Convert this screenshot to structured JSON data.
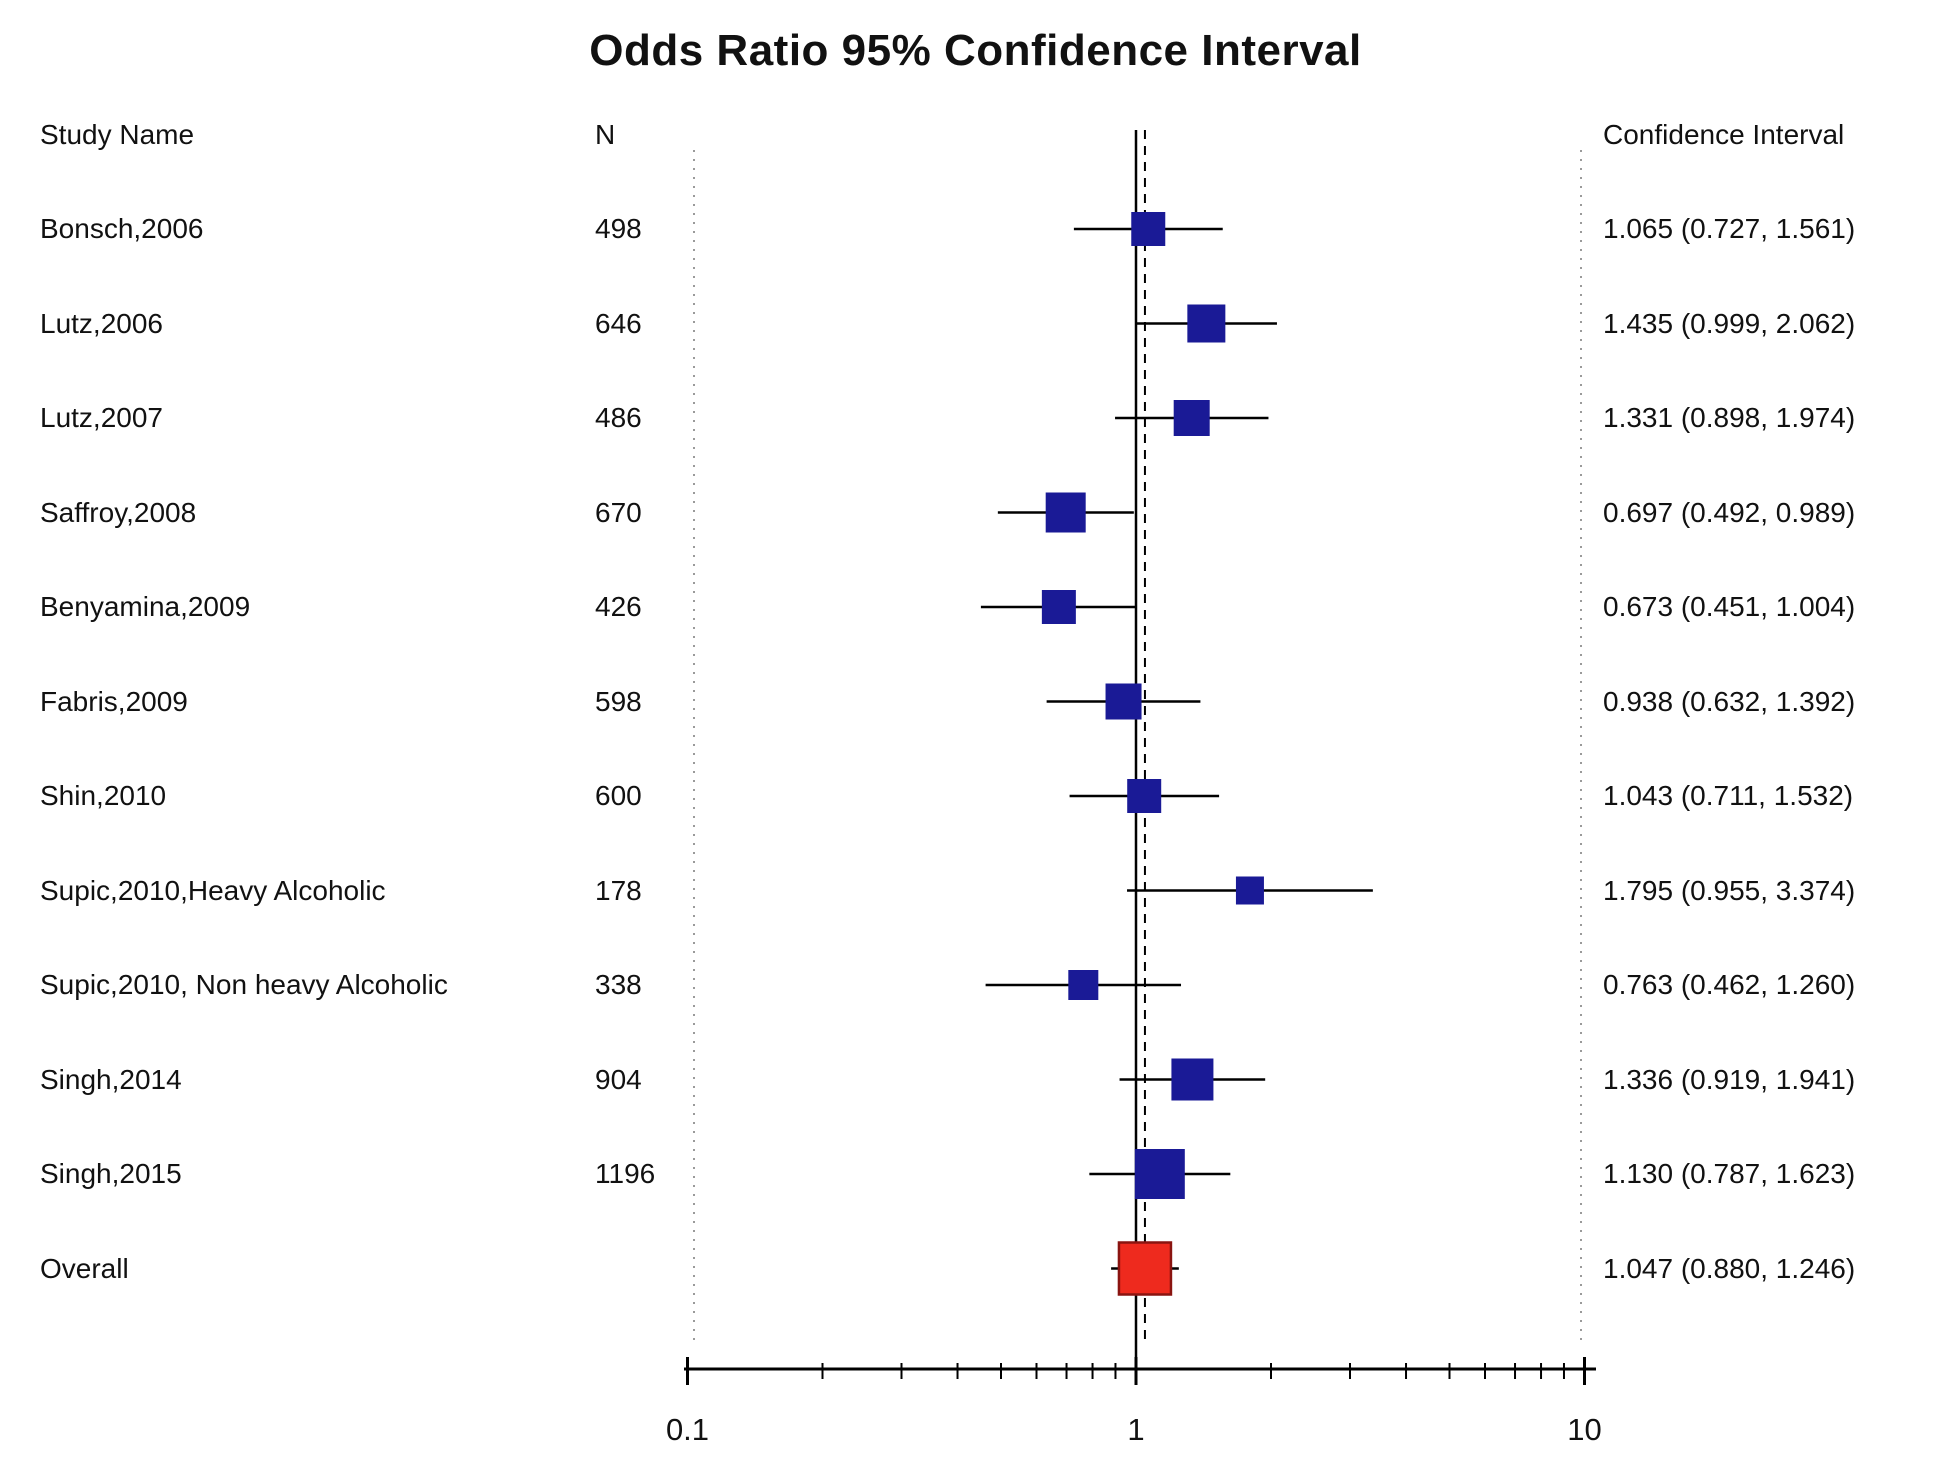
{
  "title": "Odds Ratio 95% Confidence Interval",
  "columns": {
    "study": "Study Name",
    "n": "N",
    "ci": "Confidence Interval"
  },
  "colors": {
    "marker": "#1a1a96",
    "overall_marker": "#ee2a1e",
    "overall_marker_border": "#8a1410",
    "line": "#000000",
    "guide": "#9a9a9a",
    "text": "#111111"
  },
  "chart_data": {
    "type": "forest",
    "x_scale": "log10",
    "x_range": [
      0.1,
      10
    ],
    "x_tick_labels": [
      "0.1",
      "1",
      "10"
    ],
    "x_major_ticks": [
      0.1,
      1,
      10
    ],
    "x_minor_ticks": [
      0.2,
      0.3,
      0.4,
      0.5,
      0.6,
      0.7,
      0.8,
      0.9,
      2,
      3,
      4,
      5,
      6,
      7,
      8,
      9
    ],
    "reference_line": 1,
    "overall_dashed_line": 1.047,
    "studies": [
      {
        "name": "Bonsch,2006",
        "n": "498",
        "or": 1.065,
        "ci_low": 0.727,
        "ci_high": 1.561,
        "ci_label": "1.065 (0.727, 1.561)",
        "marker_size": 34
      },
      {
        "name": "Lutz,2006",
        "n": "646",
        "or": 1.435,
        "ci_low": 0.999,
        "ci_high": 2.062,
        "ci_label": "1.435 (0.999, 2.062)",
        "marker_size": 38
      },
      {
        "name": "Lutz,2007",
        "n": "486",
        "or": 1.331,
        "ci_low": 0.898,
        "ci_high": 1.974,
        "ci_label": "1.331 (0.898, 1.974)",
        "marker_size": 36
      },
      {
        "name": "Saffroy,2008",
        "n": "670",
        "or": 0.697,
        "ci_low": 0.492,
        "ci_high": 0.989,
        "ci_label": "0.697 (0.492, 0.989)",
        "marker_size": 40
      },
      {
        "name": "Benyamina,2009",
        "n": "426",
        "or": 0.673,
        "ci_low": 0.451,
        "ci_high": 1.004,
        "ci_label": "0.673 (0.451, 1.004)",
        "marker_size": 34
      },
      {
        "name": "Fabris,2009",
        "n": "598",
        "or": 0.938,
        "ci_low": 0.632,
        "ci_high": 1.392,
        "ci_label": "0.938 (0.632, 1.392)",
        "marker_size": 36
      },
      {
        "name": "Shin,2010",
        "n": "600",
        "or": 1.043,
        "ci_low": 0.711,
        "ci_high": 1.532,
        "ci_label": "1.043 (0.711, 1.532)",
        "marker_size": 34
      },
      {
        "name": "Supic,2010,Heavy Alcoholic",
        "n": "178",
        "or": 1.795,
        "ci_low": 0.955,
        "ci_high": 3.374,
        "ci_label": "1.795 (0.955, 3.374)",
        "marker_size": 28
      },
      {
        "name": "Supic,2010, Non heavy Alcoholic",
        "n": "338",
        "or": 0.763,
        "ci_low": 0.462,
        "ci_high": 1.26,
        "ci_label": "0.763 (0.462, 1.260)",
        "marker_size": 30
      },
      {
        "name": "Singh,2014",
        "n": "904",
        "or": 1.336,
        "ci_low": 0.919,
        "ci_high": 1.941,
        "ci_label": "1.336 (0.919, 1.941)",
        "marker_size": 42
      },
      {
        "name": "Singh,2015",
        "n": "1196",
        "or": 1.13,
        "ci_low": 0.787,
        "ci_high": 1.623,
        "ci_label": "1.130 (0.787, 1.623)",
        "marker_size": 50
      }
    ],
    "overall": {
      "name": "Overall",
      "n": "",
      "or": 1.047,
      "ci_low": 0.88,
      "ci_high": 1.246,
      "ci_label": "1.047 (0.880, 1.246)",
      "marker_size": 52
    }
  }
}
